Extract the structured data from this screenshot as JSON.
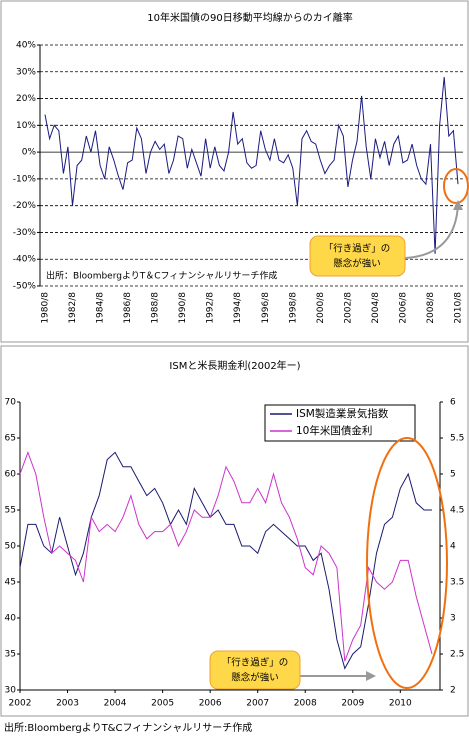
{
  "chart_data": [
    {
      "type": "line",
      "title": "10年米国債の90日移動平均線からのカイ離率",
      "source": "出所：BloombergよりT＆Cフィナンシャルリサーチ作成",
      "annotation": [
        "「行き過ぎ」の",
        "懸念が強い"
      ],
      "categories": [
        "1980/8",
        null,
        null,
        null,
        null,
        null,
        "1982/8",
        null,
        null,
        null,
        null,
        null,
        "1984/8",
        null,
        null,
        null,
        null,
        null,
        "1986/8",
        null,
        null,
        null,
        null,
        null,
        "1988/8",
        null,
        null,
        null,
        null,
        null,
        "1990/8",
        null,
        null,
        null,
        null,
        null,
        "1992/8",
        null,
        null,
        null,
        null,
        null,
        "1994/8",
        null,
        null,
        null,
        null,
        null,
        "1996/8",
        null,
        null,
        null,
        null,
        null,
        "1998/8",
        null,
        null,
        null,
        null,
        null,
        "2000/8",
        null,
        null,
        null,
        null,
        null,
        "2002/8",
        null,
        null,
        null,
        null,
        null,
        "2004/8",
        null,
        null,
        null,
        null,
        null,
        "2006/8",
        null,
        null,
        null,
        null,
        null,
        "2008/8",
        null,
        null,
        null,
        null,
        null,
        "2010/8"
      ],
      "values": [
        14,
        5,
        10,
        8,
        -8,
        2,
        -20,
        -5,
        -3,
        6,
        0,
        8,
        -5,
        -10,
        2,
        -3,
        -9,
        -14,
        -4,
        -3,
        9,
        5,
        -8,
        0,
        4,
        1,
        3,
        -8,
        -3,
        6,
        5,
        -6,
        1,
        -4,
        -9,
        5,
        -6,
        2,
        -5,
        -7,
        0,
        15,
        3,
        5,
        -4,
        -6,
        -5,
        8,
        1,
        -3,
        5,
        -3,
        -4,
        -1,
        -6,
        -20,
        5,
        8,
        4,
        3,
        -3,
        -8,
        -5,
        -3,
        10,
        6,
        -13,
        -3,
        4,
        21,
        2,
        -10,
        5,
        -2,
        4,
        -5,
        3,
        6,
        -4,
        -3,
        3,
        -5,
        -10,
        -12,
        3,
        -38,
        10,
        28,
        6,
        8,
        -12
      ],
      "color": "#1a1a80",
      "ylim": [
        -50,
        40
      ],
      "yticks": [
        {
          "value": -50,
          "label": "-50%"
        },
        {
          "value": -40,
          "label": "-40%"
        },
        {
          "value": -30,
          "label": "-30%"
        },
        {
          "value": -20,
          "label": "-20%"
        },
        {
          "value": -10,
          "label": "-10%"
        },
        {
          "value": 0,
          "label": "0%"
        },
        {
          "value": 10,
          "label": "10%"
        },
        {
          "value": 20,
          "label": "20%"
        },
        {
          "value": 30,
          "label": "30%"
        },
        {
          "value": 40,
          "label": "40%"
        }
      ],
      "grid": true
    },
    {
      "type": "line",
      "title": "ISMと米長期金利(2002年ー)",
      "source": "出所:BloombergよりT&Cフィナンシャルリサーチ作成",
      "annotation": [
        "「行き過ぎ」の",
        "懸念が強い"
      ],
      "categories": [
        "2002",
        null,
        null,
        null,
        null,
        null,
        "2003",
        null,
        null,
        null,
        null,
        null,
        "2004",
        null,
        null,
        null,
        null,
        null,
        "2005",
        null,
        null,
        null,
        null,
        null,
        "2006",
        null,
        null,
        null,
        null,
        null,
        "2007",
        null,
        null,
        null,
        null,
        null,
        "2008",
        null,
        null,
        null,
        null,
        null,
        "2009",
        null,
        null,
        null,
        null,
        null,
        "2010",
        null,
        null,
        null,
        null
      ],
      "series": [
        {
          "name": "ISM製造業景気指数",
          "color": "#1a1a6e",
          "values": [
            47,
            53,
            53,
            50,
            49,
            54,
            50,
            46,
            49,
            54,
            57,
            62,
            63,
            61,
            61,
            59,
            57,
            58,
            56,
            53,
            55,
            53,
            58,
            56,
            54,
            55,
            53,
            53,
            50,
            50,
            49,
            52,
            53,
            52,
            51,
            50,
            50,
            48,
            49,
            44,
            37,
            33,
            35,
            36,
            42,
            49,
            53,
            54,
            58,
            60,
            56,
            55,
            55
          ]
        },
        {
          "name": "10年米国債金利",
          "color": "#cc33cc",
          "axis": "y2",
          "values": [
            5.0,
            5.3,
            5.0,
            4.4,
            3.9,
            4.0,
            3.9,
            3.8,
            3.5,
            4.4,
            4.2,
            4.3,
            4.2,
            4.4,
            4.7,
            4.3,
            4.1,
            4.2,
            4.2,
            4.3,
            4.0,
            4.2,
            4.5,
            4.4,
            4.4,
            4.7,
            5.1,
            4.9,
            4.6,
            4.6,
            4.8,
            4.6,
            5.0,
            4.6,
            4.4,
            4.1,
            3.7,
            3.6,
            4.0,
            3.9,
            3.7,
            2.4,
            2.7,
            2.9,
            3.7,
            3.5,
            3.4,
            3.5,
            3.8,
            3.8,
            3.3,
            2.9,
            2.5
          ]
        }
      ],
      "ylim": [
        30,
        70
      ],
      "yticks": [
        30,
        35,
        40,
        45,
        50,
        55,
        60,
        65,
        70
      ],
      "y2lim": [
        2,
        6
      ],
      "y2ticks": [
        2,
        2.5,
        3,
        3.5,
        4,
        4.5,
        5,
        5.5,
        6
      ]
    }
  ]
}
